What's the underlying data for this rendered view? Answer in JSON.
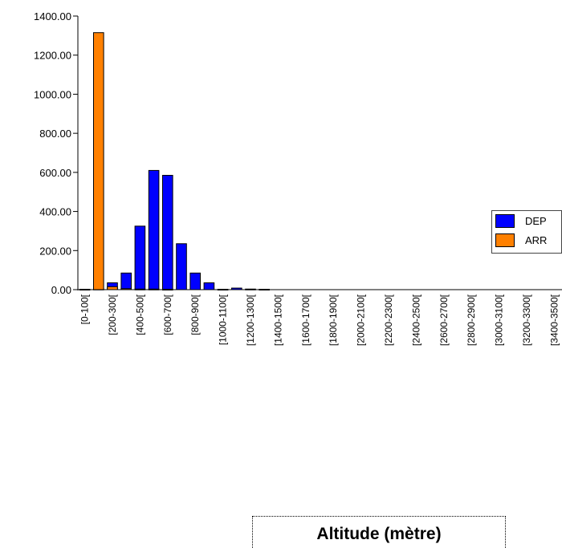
{
  "chart_data": {
    "type": "bar",
    "xlabel": "Altitude  (mètre)",
    "ylabel": "",
    "ylim": [
      0,
      1400
    ],
    "yticks": [
      "0.00",
      "200.00",
      "400.00",
      "600.00",
      "800.00",
      "1000.00",
      "1200.00",
      "1400.00"
    ],
    "categories": [
      "[0-100[",
      "[100-200[",
      "[200-300[",
      "[300-400[",
      "[400-500[",
      "[500-600[",
      "[600-700[",
      "[700-800[",
      "[800-900[",
      "[900-1000[",
      "[1000-1100[",
      "[1100-1200[",
      "[1200-1300[",
      "[1300-1400[",
      "[1400-1500[",
      "[1500-1600[",
      "[1600-1700[",
      "[1700-1800[",
      "[1800-1900[",
      "[1900-2000[",
      "[2000-2100[",
      "[2100-2200[",
      "[2200-2300[",
      "[2300-2400[",
      "[2400-2500[",
      "[2500-2600[",
      "[2600-2700[",
      "[2700-2800[",
      "[2800-2900[",
      "[2900-3000[",
      "[3000-3100[",
      "[3100-3200[",
      "[3200-3300[",
      "[3300-3400[",
      "[3400-3500["
    ],
    "visible_category_labels": [
      "[0-100[",
      "[200-300[",
      "[400-500[",
      "[600-700[",
      "[800-900[",
      "[1000-1100[",
      "[1200-1300[",
      "[1400-1500[",
      "[1600-1700[",
      "[1800-1900[",
      "[2000-2100[",
      "[2200-2300[",
      "[2400-2500[",
      "[2600-2700[",
      "[2800-2900[",
      "[3000-3100[",
      "[3200-3300[",
      "[3400-3500["
    ],
    "series": [
      {
        "name": "DEP",
        "color": "#0000ff",
        "values": [
          2,
          3,
          35,
          85,
          325,
          610,
          585,
          235,
          85,
          35,
          2,
          8,
          3,
          2,
          0,
          0,
          0,
          0,
          0,
          0,
          0,
          0,
          0,
          0,
          0,
          0,
          0,
          0,
          0,
          0,
          0,
          0,
          0,
          0,
          0
        ]
      },
      {
        "name": "ARR",
        "color": "#ff8000",
        "values": [
          0,
          1315,
          15,
          5,
          3,
          3,
          2,
          0,
          0,
          0,
          0,
          0,
          0,
          0,
          0,
          0,
          0,
          0,
          0,
          0,
          0,
          0,
          0,
          0,
          0,
          0,
          0,
          0,
          0,
          0,
          0,
          0,
          0,
          0,
          0
        ]
      }
    ],
    "legend_position": "right",
    "grid": false
  }
}
